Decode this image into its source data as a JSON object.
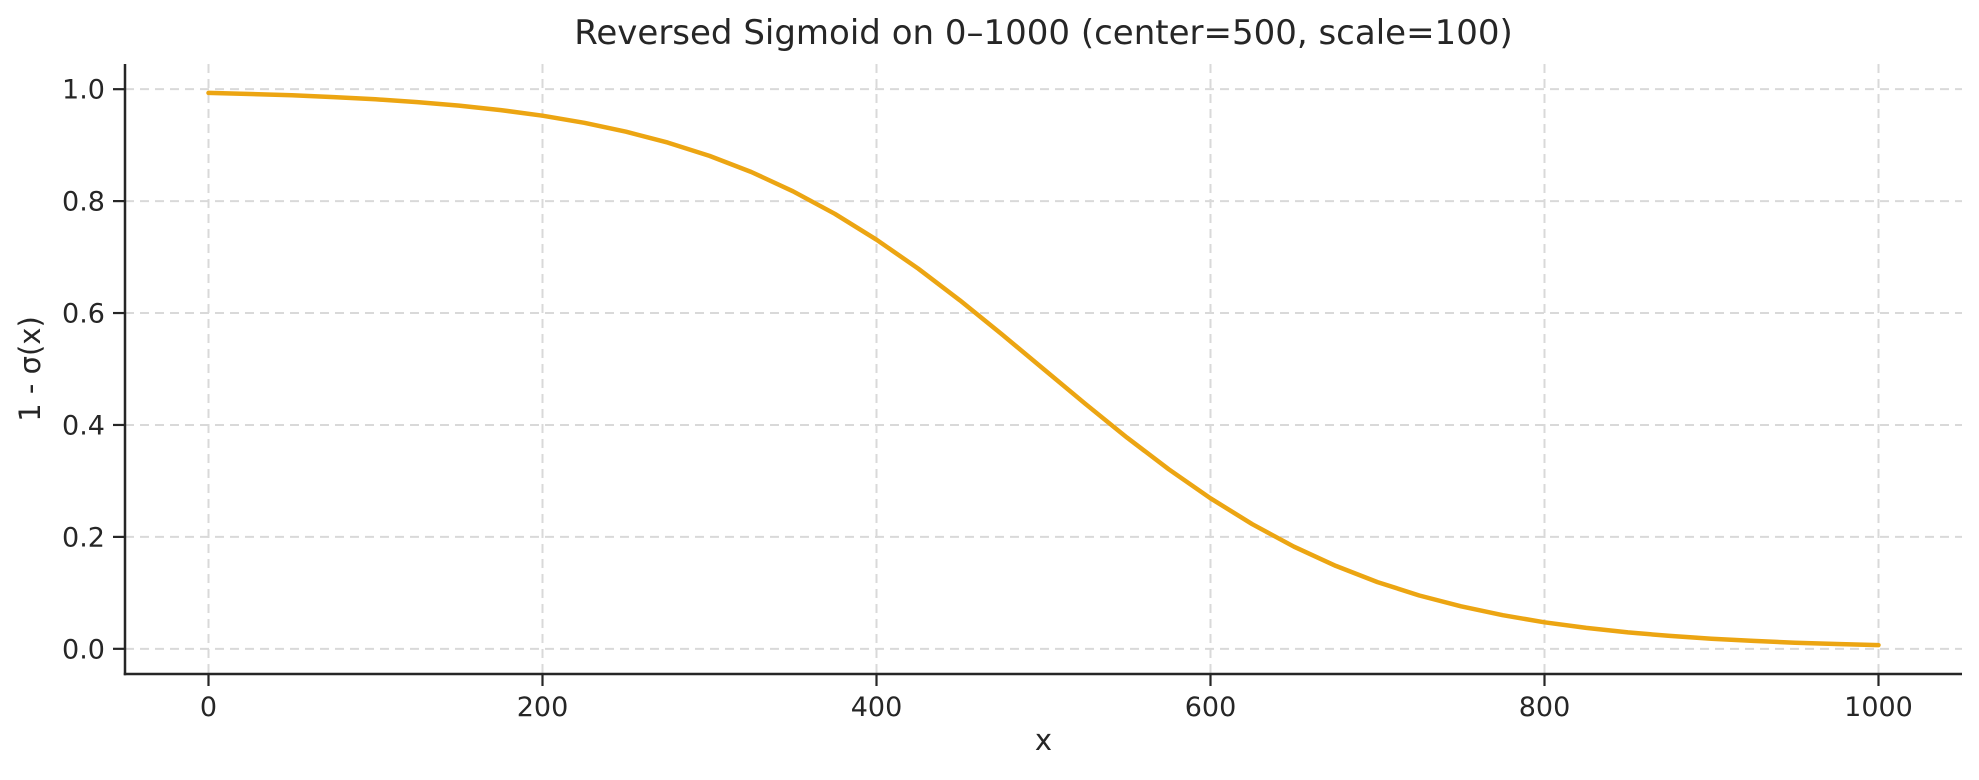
{
  "figure": {
    "background": "#ffffff",
    "text_color": "#262626",
    "spine_color": "#262626",
    "grid_color": "#d9d9d9"
  },
  "chart_data": {
    "type": "line",
    "title": "Reversed Sigmoid on 0–1000 (center=500, scale=100)",
    "xlabel": "x",
    "ylabel": "1 - σ(x)",
    "center": 500,
    "scale": 100,
    "xlim": [
      -50,
      1050
    ],
    "ylim": [
      -0.045,
      1.045
    ],
    "x_ticks": [
      0,
      200,
      400,
      600,
      800,
      1000
    ],
    "x_tick_labels": [
      "0",
      "200",
      "400",
      "600",
      "800",
      "1000"
    ],
    "y_ticks": [
      0.0,
      0.2,
      0.4,
      0.6,
      0.8,
      1.0
    ],
    "y_tick_labels": [
      "0.0",
      "0.2",
      "0.4",
      "0.6",
      "0.8",
      "1.0"
    ],
    "grid": true,
    "grid_style": "dashed",
    "legend_position": "none",
    "series": [
      {
        "name": "1 - σ(x)",
        "color": "#ECA512",
        "x": [
          0,
          25,
          50,
          75,
          100,
          125,
          150,
          175,
          200,
          225,
          250,
          275,
          300,
          325,
          350,
          375,
          400,
          425,
          450,
          475,
          500,
          525,
          550,
          575,
          600,
          625,
          650,
          675,
          700,
          725,
          750,
          775,
          800,
          825,
          850,
          875,
          900,
          925,
          950,
          975,
          1000
        ],
        "y": [
          0.9933,
          0.9914,
          0.989,
          0.9859,
          0.982,
          0.977,
          0.9707,
          0.9627,
          0.9526,
          0.9399,
          0.9241,
          0.9046,
          0.8808,
          0.852,
          0.8176,
          0.7773,
          0.7311,
          0.6792,
          0.6225,
          0.5622,
          0.5,
          0.4378,
          0.3775,
          0.3208,
          0.2689,
          0.2227,
          0.1824,
          0.1481,
          0.1192,
          0.0953,
          0.0759,
          0.0601,
          0.0474,
          0.0373,
          0.0293,
          0.023,
          0.018,
          0.0141,
          0.011,
          0.0086,
          0.0067
        ]
      }
    ]
  }
}
